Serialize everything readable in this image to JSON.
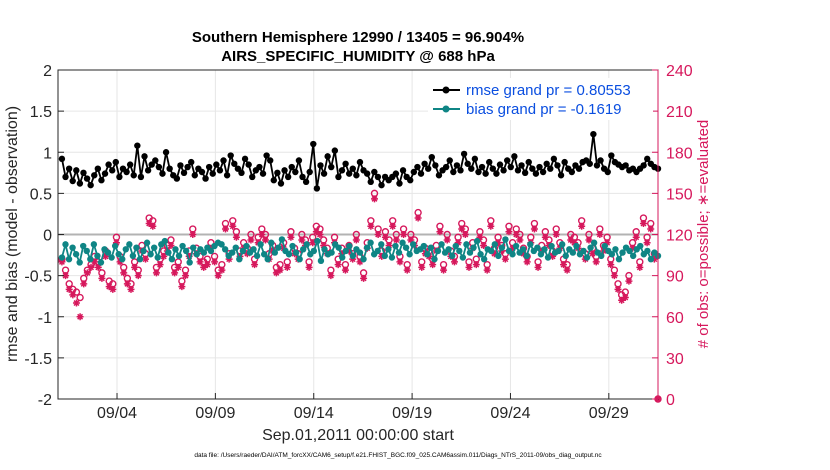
{
  "chart_data": {
    "type": "line",
    "title_line1": "Southern Hemisphere 12990 / 13405 = 96.904%",
    "title_line2": "AIRS_SPECIFIC_HUMIDITY @ 688 hPa",
    "ylabel_left": "rmse and bias (model - observation)",
    "ylabel_right": "# of obs: o=possible; ∗=evaluated",
    "xlabel": "Sep.01,2011 00:00:00 start",
    "footer": "data file: /Users/raeder/DAI/ATM_forcXX/CAM6_setup/f.e21.FHIST_BGC.f09_025.CAM6assim.011/Diags_NTrS_2011-09/obs_diag_output.nc",
    "ylim_left": [
      -2,
      2
    ],
    "yticks_left": [
      "-2",
      "-1.5",
      "-1",
      "-0.5",
      "0",
      "0.5",
      "1",
      "1.5",
      "2"
    ],
    "ylim_right": [
      0,
      240
    ],
    "yticks_right": [
      "0",
      "30",
      "60",
      "90",
      "120",
      "150",
      "180",
      "210",
      "240"
    ],
    "xlim_days": [
      1,
      31.5
    ],
    "xticks": [
      {
        "day": 4,
        "label": "09/04"
      },
      {
        "day": 9,
        "label": "09/09"
      },
      {
        "day": 14,
        "label": "09/14"
      },
      {
        "day": 19,
        "label": "09/19"
      },
      {
        "day": 24,
        "label": "09/24"
      },
      {
        "day": 29,
        "label": "09/29"
      }
    ],
    "legend": {
      "position": "top-right",
      "rmse_label": "rmse grand pr = 0.80553",
      "bias_label": "bias grand pr = -0.1619"
    },
    "colors": {
      "rmse": "#000000",
      "bias": "#0f8585",
      "obs": "#d6185c",
      "zero_line": "#b3b3b3",
      "grid": "#e6e6e6",
      "legend_text": "#0a4ee0"
    },
    "rmse": [
      0.92,
      0.7,
      0.8,
      0.65,
      0.78,
      0.62,
      0.75,
      0.68,
      0.6,
      0.72,
      0.8,
      0.66,
      0.74,
      0.85,
      0.78,
      0.88,
      0.7,
      0.8,
      0.76,
      0.85,
      0.72,
      1.08,
      0.7,
      0.95,
      0.78,
      0.85,
      0.9,
      0.82,
      0.74,
      1.0,
      0.8,
      0.72,
      0.68,
      0.84,
      0.75,
      0.82,
      0.88,
      0.72,
      0.8,
      0.76,
      0.68,
      0.82,
      0.74,
      0.85,
      0.78,
      0.9,
      0.72,
      0.96,
      0.86,
      0.8,
      0.75,
      0.92,
      0.85,
      0.7,
      0.78,
      0.82,
      0.74,
      0.96,
      0.9,
      0.66,
      0.75,
      0.62,
      0.78,
      0.7,
      0.82,
      0.76,
      0.9,
      0.7,
      0.64,
      0.76,
      1.1,
      0.56,
      0.84,
      0.74,
      0.95,
      0.82,
      1.02,
      0.7,
      0.78,
      0.86,
      0.74,
      0.8,
      0.72,
      0.88,
      0.78,
      0.74,
      0.64,
      0.76,
      0.7,
      0.6,
      0.7,
      0.66,
      0.7,
      0.74,
      0.62,
      0.78,
      0.7,
      0.66,
      0.76,
      0.82,
      0.74,
      0.86,
      0.8,
      0.94,
      0.84,
      0.72,
      0.78,
      0.82,
      0.9,
      0.76,
      0.84,
      0.78,
      0.98,
      0.86,
      0.8,
      0.92,
      0.76,
      0.82,
      0.74,
      0.88,
      0.8,
      0.74,
      0.85,
      0.78,
      0.9,
      0.82,
      0.95,
      0.78,
      0.84,
      0.75,
      0.88,
      0.8,
      0.74,
      0.82,
      0.76,
      0.86,
      0.8,
      0.92,
      0.84,
      0.72,
      0.88,
      0.8,
      0.76,
      0.84,
      0.8,
      0.88,
      0.9,
      0.86,
      1.22,
      0.84,
      0.9,
      0.8,
      0.76,
      0.96,
      0.88,
      0.85,
      0.82,
      0.84,
      0.78,
      0.8,
      0.76,
      0.8,
      0.84,
      0.92,
      0.86,
      0.82,
      0.8
    ],
    "bias": [
      -0.28,
      -0.12,
      -0.3,
      -0.16,
      -0.24,
      -0.34,
      -0.14,
      -0.2,
      -0.3,
      -0.12,
      -0.26,
      -0.34,
      -0.18,
      -0.22,
      -0.28,
      -0.14,
      -0.24,
      -0.3,
      -0.18,
      -0.12,
      -0.26,
      -0.16,
      -0.3,
      -0.2,
      -0.1,
      -0.24,
      -0.16,
      -0.28,
      -0.12,
      -0.08,
      -0.22,
      -0.3,
      -0.18,
      -0.26,
      -0.14,
      -0.2,
      -0.34,
      -0.16,
      -0.24,
      -0.18,
      -0.22,
      -0.16,
      -0.2,
      -0.14,
      -0.1,
      -0.12,
      -0.18,
      -0.26,
      -0.22,
      -0.16,
      -0.3,
      -0.2,
      -0.14,
      -0.22,
      -0.18,
      -0.26,
      -0.12,
      -0.24,
      -0.3,
      -0.1,
      -0.22,
      -0.16,
      -0.06,
      -0.2,
      -0.24,
      -0.14,
      -0.22,
      -0.3,
      -0.18,
      -0.12,
      -0.24,
      -0.2,
      -0.08,
      -0.32,
      -0.18,
      -0.24,
      -0.22,
      -0.12,
      -0.16,
      -0.28,
      -0.2,
      -0.14,
      -0.26,
      -0.18,
      -0.22,
      -0.3,
      -0.16,
      -0.1,
      -0.24,
      -0.2,
      -0.12,
      -0.26,
      -0.18,
      -0.28,
      -0.14,
      -0.22,
      -0.1,
      -0.16,
      -0.24,
      -0.12,
      -0.2,
      -0.18,
      -0.14,
      -0.24,
      -0.16,
      -0.3,
      -0.2,
      -0.12,
      -0.22,
      -0.18,
      -0.26,
      -0.14,
      -0.2,
      -0.28,
      -0.12,
      -0.22,
      -0.16,
      -0.08,
      -0.24,
      -0.3,
      -0.18,
      -0.2,
      -0.12,
      -0.26,
      -0.16,
      -0.06,
      -0.2,
      -0.24,
      -0.14,
      -0.22,
      -0.18,
      -0.26,
      -0.12,
      -0.2,
      -0.16,
      -0.24,
      -0.18,
      -0.28,
      -0.14,
      -0.22,
      -0.2,
      -0.12,
      -0.26,
      -0.18,
      -0.22,
      -0.14,
      -0.24,
      -0.2,
      -0.28,
      -0.16,
      -0.1,
      -0.22,
      -0.26,
      -0.14,
      -0.2,
      -0.24,
      -0.18,
      -0.3,
      -0.22,
      -0.16,
      -0.2,
      -0.26,
      -0.18,
      -0.14,
      -0.24,
      -0.2,
      -0.3,
      -0.22,
      -0.26
    ],
    "obs_possible": [
      102,
      94,
      84,
      80,
      78,
      74,
      88,
      94,
      98,
      104,
      100,
      92,
      108,
      86,
      84,
      118,
      104,
      96,
      88,
      84,
      100,
      94,
      112,
      106,
      132,
      130,
      96,
      102,
      108,
      112,
      116,
      96,
      100,
      86,
      94,
      108,
      124,
      110,
      104,
      100,
      102,
      114,
      104,
      94,
      98,
      128,
      106,
      130,
      122,
      108,
      114,
      110,
      120,
      102,
      118,
      124,
      120,
      106,
      112,
      96,
      98,
      114,
      100,
      122,
      110,
      106,
      120,
      116,
      100,
      118,
      126,
      124,
      116,
      110,
      94,
      118,
      102,
      110,
      98,
      112,
      106,
      120,
      104,
      92,
      114,
      130,
      150,
      124,
      108,
      122,
      116,
      130,
      120,
      104,
      124,
      98,
      120,
      116,
      136,
      100,
      110,
      108,
      102,
      112,
      126,
      98,
      120,
      108,
      104,
      118,
      128,
      124,
      100,
      114,
      102,
      122,
      116,
      98,
      130,
      110,
      118,
      112,
      106,
      126,
      114,
      124,
      120,
      110,
      104,
      118,
      128,
      100,
      112,
      122,
      116,
      108,
      124,
      114,
      102,
      98,
      120,
      118,
      114,
      130,
      106,
      120,
      110,
      104,
      124,
      112,
      118,
      102,
      94,
      84,
      76,
      78,
      90,
      114,
      122,
      100,
      132,
      118,
      128,
      106,
      0
    ],
    "obs_evaluated": [
      100,
      90,
      80,
      76,
      70,
      60,
      84,
      92,
      96,
      100,
      96,
      88,
      104,
      82,
      80,
      114,
      100,
      92,
      84,
      80,
      96,
      90,
      108,
      102,
      128,
      126,
      92,
      98,
      104,
      108,
      112,
      92,
      96,
      82,
      90,
      104,
      120,
      106,
      100,
      96,
      98,
      110,
      100,
      90,
      94,
      124,
      102,
      126,
      118,
      104,
      110,
      106,
      116,
      98,
      114,
      120,
      116,
      102,
      108,
      92,
      94,
      110,
      96,
      118,
      106,
      102,
      116,
      112,
      96,
      114,
      122,
      120,
      112,
      106,
      90,
      114,
      98,
      106,
      94,
      108,
      102,
      116,
      100,
      88,
      110,
      126,
      146,
      120,
      104,
      118,
      112,
      126,
      116,
      100,
      120,
      94,
      116,
      112,
      132,
      96,
      106,
      104,
      98,
      108,
      122,
      94,
      116,
      104,
      100,
      114,
      124,
      120,
      96,
      110,
      98,
      118,
      112,
      94,
      126,
      106,
      114,
      108,
      102,
      122,
      110,
      120,
      116,
      106,
      100,
      114,
      124,
      96,
      108,
      118,
      112,
      104,
      120,
      110,
      98,
      94,
      116,
      114,
      110,
      126,
      102,
      116,
      106,
      100,
      120,
      108,
      114,
      98,
      90,
      80,
      72,
      74,
      86,
      110,
      118,
      96,
      128,
      114,
      124,
      102,
      0
    ]
  }
}
